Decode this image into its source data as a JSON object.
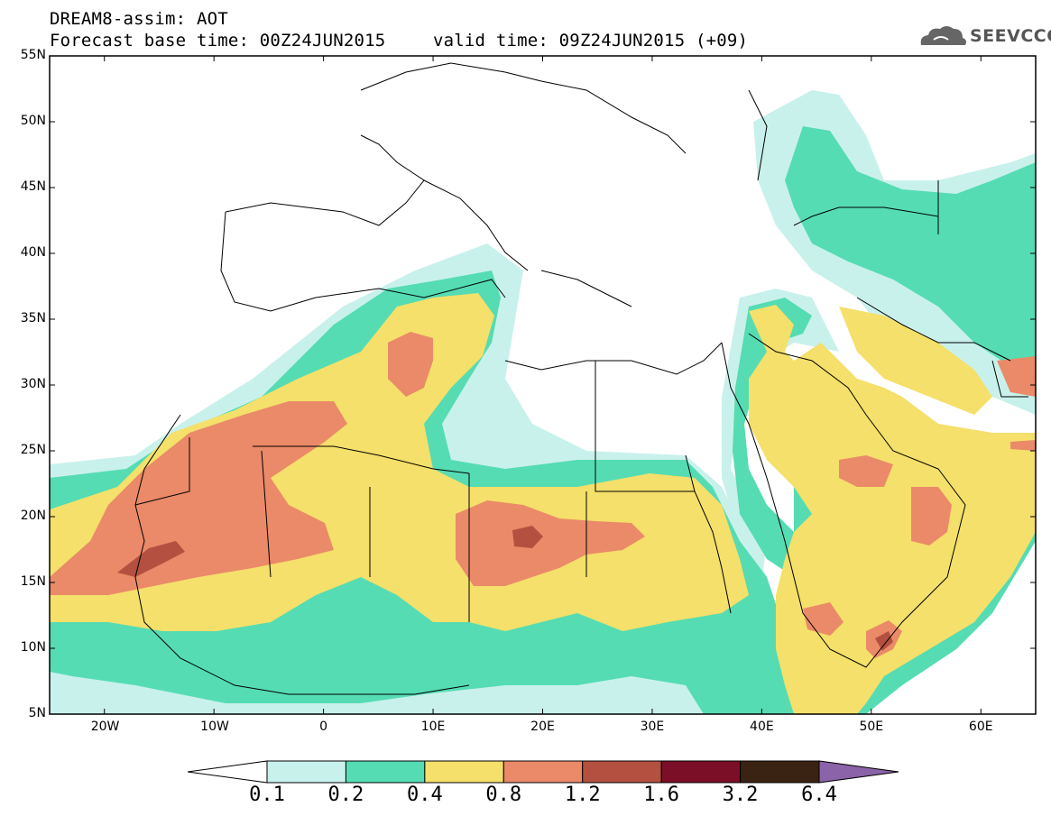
{
  "header": {
    "title": "DREAM8-assim: AOT",
    "base_time": "Forecast base time: 00Z24JUN2015",
    "valid_time": "valid time: 09Z24JUN2015 (+09)"
  },
  "logo": {
    "icon": "cloud-icon",
    "text": "SEEVCCC"
  },
  "map": {
    "lon_range": [
      -25,
      65
    ],
    "lat_range": [
      5,
      55
    ],
    "lat_ticks": [
      "5N",
      "10N",
      "15N",
      "20N",
      "25N",
      "30N",
      "35N",
      "40N",
      "45N",
      "50N",
      "55N"
    ],
    "lon_ticks": [
      "20W",
      "10W",
      "0",
      "10E",
      "20E",
      "30E",
      "40E",
      "50E",
      "60E"
    ]
  },
  "colorbar": {
    "labels": [
      "0.1",
      "0.2",
      "0.4",
      "0.8",
      "1.2",
      "1.6",
      "3.2",
      "6.4"
    ],
    "colors": [
      "#ffffff",
      "#c9f1ec",
      "#55dcb3",
      "#f4e06a",
      "#ea8a68",
      "#b4503f",
      "#7b0f28",
      "#3a2313",
      "#8a63a8"
    ]
  }
}
